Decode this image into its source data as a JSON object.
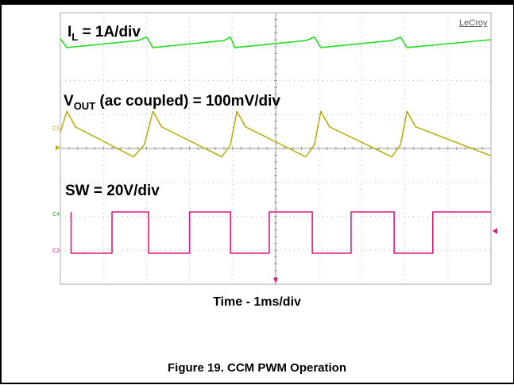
{
  "labels": {
    "il_main": "I",
    "il_sub": "L",
    "il_rest": " = 1A/div",
    "vout_main": "V",
    "vout_sub": "OUT",
    "vout_rest": " (ac coupled) = 100mV/div",
    "sw": "SW = 20V/div",
    "brand": "LeCroy",
    "ch1": "C1",
    "ch4": "C4",
    "ch2": "C2",
    "xlabel": "Time - 1ms/div",
    "caption": "Figure 19. CCM PWM Operation"
  },
  "colors": {
    "il": "#22dd22",
    "vout": "#b8b012",
    "sw": "#e0157f",
    "grid": "#bbbbbb",
    "marker": "#e0157f"
  },
  "chart_data": {
    "type": "line",
    "title": "",
    "xlabel": "Time - 1ms/div",
    "x_unit": "div",
    "xlim": [
      0,
      10
    ],
    "grid": true,
    "series": [
      {
        "name": "I_L (1A/div)",
        "points": [
          [
            0,
            2.55
          ],
          [
            0.15,
            2.05
          ],
          [
            1.8,
            2.45
          ],
          [
            2.0,
            2.65
          ],
          [
            2.15,
            2.05
          ],
          [
            3.8,
            2.45
          ],
          [
            3.95,
            2.65
          ],
          [
            4.05,
            2.05
          ],
          [
            5.7,
            2.45
          ],
          [
            5.9,
            2.65
          ],
          [
            6.05,
            2.05
          ],
          [
            7.7,
            2.45
          ],
          [
            7.9,
            2.65
          ],
          [
            8.05,
            2.05
          ],
          [
            10,
            2.5
          ]
        ]
      },
      {
        "name": "V_OUT (ac coupled, 100mV/div)",
        "points": [
          [
            0,
            0.65
          ],
          [
            0.15,
            1.6
          ],
          [
            0.35,
            0.9
          ],
          [
            1.7,
            -0.45
          ],
          [
            1.95,
            0.1
          ],
          [
            2.15,
            1.6
          ],
          [
            2.35,
            0.9
          ],
          [
            3.75,
            -0.45
          ],
          [
            3.95,
            0.1
          ],
          [
            4.1,
            1.6
          ],
          [
            4.3,
            0.9
          ],
          [
            5.7,
            -0.45
          ],
          [
            5.9,
            0.1
          ],
          [
            6.05,
            1.6
          ],
          [
            6.25,
            0.9
          ],
          [
            7.7,
            -0.45
          ],
          [
            7.9,
            0.1
          ],
          [
            8.05,
            1.6
          ],
          [
            8.25,
            0.9
          ],
          [
            10,
            -0.4
          ]
        ]
      },
      {
        "name": "SW (20V/div)",
        "points": [
          [
            0.25,
            2.0
          ],
          [
            0.25,
            0
          ],
          [
            1.2,
            0
          ],
          [
            1.2,
            2.0
          ],
          [
            2.05,
            2.0
          ],
          [
            2.05,
            0
          ],
          [
            3.0,
            0
          ],
          [
            3.0,
            2.0
          ],
          [
            3.95,
            2.0
          ],
          [
            3.95,
            0
          ],
          [
            4.85,
            0
          ],
          [
            4.85,
            2.0
          ],
          [
            5.85,
            2.0
          ],
          [
            5.85,
            0
          ],
          [
            6.75,
            0
          ],
          [
            6.75,
            2.0
          ],
          [
            7.75,
            2.0
          ],
          [
            7.75,
            0
          ],
          [
            8.65,
            0
          ],
          [
            8.65,
            2.0
          ],
          [
            10,
            2.0
          ]
        ]
      }
    ]
  }
}
